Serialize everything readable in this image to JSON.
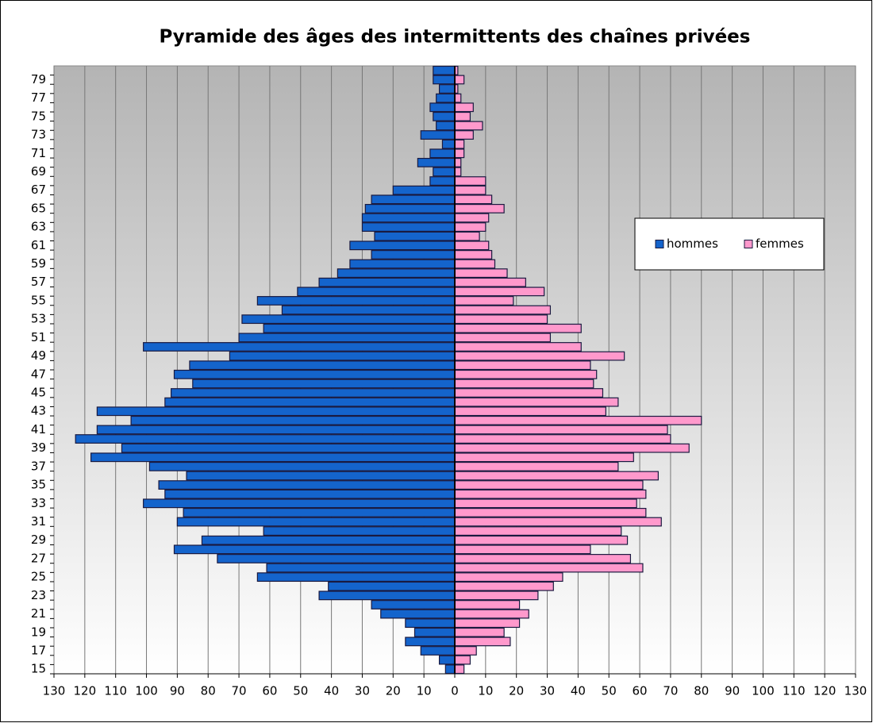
{
  "chart_data": {
    "type": "bar",
    "orientation": "horizontal",
    "title": "Pyramide des âges des intermittents des chaînes privées",
    "categories": [
      15,
      null,
      17,
      null,
      19,
      null,
      21,
      null,
      23,
      null,
      25,
      null,
      27,
      null,
      29,
      null,
      31,
      null,
      33,
      null,
      35,
      null,
      37,
      null,
      39,
      null,
      41,
      null,
      43,
      null,
      45,
      null,
      47,
      null,
      49,
      null,
      51,
      null,
      53,
      null,
      55,
      null,
      57,
      null,
      59,
      null,
      61,
      null,
      63,
      null,
      65,
      null,
      67,
      null,
      69,
      null,
      71,
      null,
      73,
      null,
      75,
      null,
      77,
      null,
      79,
      null
    ],
    "series": [
      {
        "name": "hommes",
        "color": "#1464cc",
        "values": [
          -3,
          -5,
          -11,
          -16,
          -13,
          -16,
          -24,
          -27,
          -44,
          -41,
          -64,
          -61,
          -77,
          -91,
          -82,
          -62,
          -90,
          -88,
          -101,
          -94,
          -96,
          -87,
          -99,
          -118,
          -108,
          -123,
          -116,
          -105,
          -116,
          -94,
          -92,
          -85,
          -91,
          -86,
          -73,
          -101,
          -70,
          -62,
          -69,
          -56,
          -64,
          -51,
          -44,
          -38,
          -34,
          -27,
          -34,
          -26,
          -30,
          -30,
          -29,
          -27,
          -20,
          -8,
          -7,
          -12,
          -8,
          -4,
          -11,
          -6,
          -7,
          -8,
          -6,
          -5,
          -7,
          -7
        ]
      },
      {
        "name": "femmes",
        "color": "#ff99cc",
        "values": [
          3,
          5,
          7,
          18,
          16,
          21,
          24,
          21,
          27,
          32,
          35,
          61,
          57,
          44,
          56,
          54,
          67,
          62,
          59,
          62,
          61,
          66,
          53,
          58,
          76,
          70,
          69,
          80,
          49,
          53,
          48,
          45,
          46,
          44,
          55,
          41,
          31,
          41,
          30,
          31,
          19,
          29,
          23,
          17,
          13,
          12,
          11,
          8,
          10,
          11,
          16,
          12,
          10,
          10,
          2,
          2,
          3,
          3,
          6,
          9,
          5,
          6,
          2,
          1,
          3,
          1
        ]
      }
    ],
    "xlim": [
      -130,
      130
    ],
    "xticks": [
      {
        "value": -130,
        "label": "130"
      },
      {
        "value": -120,
        "label": "120"
      },
      {
        "value": -110,
        "label": "110"
      },
      {
        "value": -100,
        "label": "100"
      },
      {
        "value": -90,
        "label": "90"
      },
      {
        "value": -80,
        "label": "80"
      },
      {
        "value": -70,
        "label": "70"
      },
      {
        "value": -60,
        "label": "60"
      },
      {
        "value": -50,
        "label": "50"
      },
      {
        "value": -40,
        "label": "40"
      },
      {
        "value": -30,
        "label": "30"
      },
      {
        "value": -20,
        "label": "20"
      },
      {
        "value": -10,
        "label": "10"
      },
      0,
      10,
      20,
      30,
      40,
      50,
      60,
      70,
      80,
      90,
      100,
      110,
      120,
      130
    ],
    "grid": true,
    "legend": "right"
  }
}
